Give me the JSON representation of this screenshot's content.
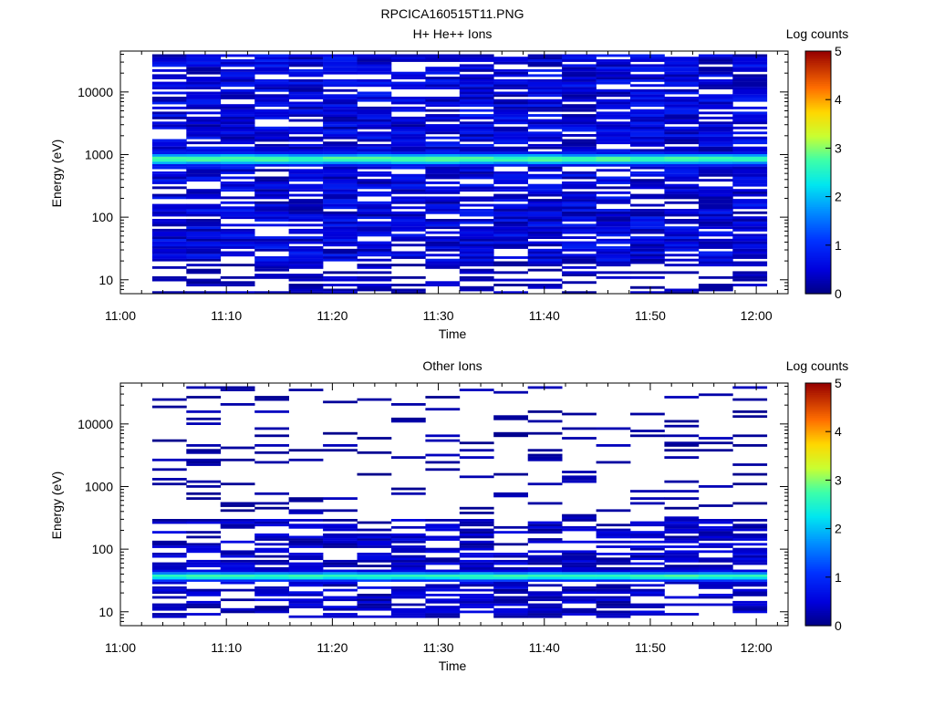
{
  "figure_title": "RPCICA160515T11.PNG",
  "chart_data": [
    {
      "type": "heatmap",
      "title": "H+ He++ Ions",
      "xlabel": "Time",
      "ylabel": "Energy (eV)",
      "y_scale": "log",
      "ylim": [
        6,
        45000
      ],
      "x_range_minutes": [
        0,
        63
      ],
      "x_ticks": [
        "11:00",
        "11:10",
        "11:20",
        "11:30",
        "11:40",
        "11:50",
        "12:00"
      ],
      "x_tick_minutes": [
        0,
        10,
        20,
        30,
        40,
        50,
        60
      ],
      "y_ticks": [
        "10",
        "100",
        "1000",
        "10000"
      ],
      "y_tick_values": [
        10,
        100,
        1000,
        10000
      ],
      "colorbar": {
        "label": "Log counts",
        "min": 0,
        "max": 5,
        "ticks": [
          "0",
          "1",
          "2",
          "3",
          "4",
          "5"
        ]
      },
      "time_bins_start": "11:03",
      "time_bins_end": "12:01",
      "n_time_bins": 18,
      "n_energy_bins": 96,
      "energy_range_ev": [
        6,
        40000
      ],
      "profile": "dense coverage 20 eV to 40 keV; bright peak (log counts ~2.5-3) near 800-1000 eV; sparse low counts below 20 eV",
      "peak_energy_ev": 850,
      "peak_log_counts": 2.9
    },
    {
      "type": "heatmap",
      "title": "Other Ions",
      "xlabel": "Time",
      "ylabel": "Energy (eV)",
      "y_scale": "log",
      "ylim": [
        6,
        45000
      ],
      "x_range_minutes": [
        0,
        63
      ],
      "x_ticks": [
        "11:00",
        "11:10",
        "11:20",
        "11:30",
        "11:40",
        "11:50",
        "12:00"
      ],
      "x_tick_minutes": [
        0,
        10,
        20,
        30,
        40,
        50,
        60
      ],
      "y_ticks": [
        "10",
        "100",
        "1000",
        "10000"
      ],
      "y_tick_values": [
        10,
        100,
        1000,
        10000
      ],
      "colorbar": {
        "label": "Log counts",
        "min": 0,
        "max": 5,
        "ticks": [
          "0",
          "1",
          "2",
          "3",
          "4",
          "5"
        ]
      },
      "time_bins_start": "11:03",
      "time_bins_end": "12:01",
      "n_time_bins": 18,
      "n_energy_bins": 96,
      "energy_range_ev": [
        8,
        40000
      ],
      "profile": "sparse low counts across 100 eV - 40 keV; moderate coverage 20-300 eV; bright band (log counts ~2.5-3) near 35-40 eV",
      "peak_energy_ev": 37,
      "peak_log_counts": 2.8
    }
  ]
}
